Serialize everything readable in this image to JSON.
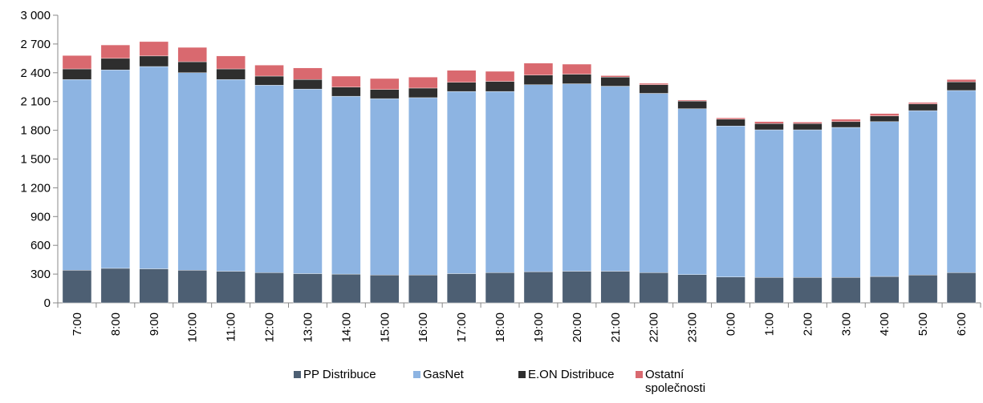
{
  "chart_data": {
    "type": "stacked_bar",
    "categories": [
      "7:00",
      "8:00",
      "9:00",
      "10:00",
      "11:00",
      "12:00",
      "13:00",
      "14:00",
      "15:00",
      "16:00",
      "17:00",
      "18:00",
      "19:00",
      "20:00",
      "21:00",
      "22:00",
      "23:00",
      "0:00",
      "1:00",
      "2:00",
      "3:00",
      "4:00",
      "5:00",
      "6:00"
    ],
    "series": [
      {
        "name": "PP Distribuce",
        "color": "#4d5f73",
        "values": [
          340,
          360,
          355,
          340,
          330,
          315,
          305,
          300,
          290,
          290,
          305,
          315,
          325,
          330,
          330,
          315,
          295,
          270,
          265,
          265,
          265,
          275,
          290,
          315
        ]
      },
      {
        "name": "GasNet",
        "color": "#8db4e2",
        "values": [
          1990,
          2070,
          2110,
          2060,
          2000,
          1955,
          1925,
          1855,
          1840,
          1850,
          1900,
          1890,
          1950,
          1955,
          1930,
          1870,
          1730,
          1575,
          1540,
          1540,
          1565,
          1615,
          1715,
          1900
        ]
      },
      {
        "name": "E.ON Distribuce",
        "color": "#2e2e2e",
        "values": [
          110,
          120,
          110,
          115,
          110,
          95,
          100,
          95,
          95,
          100,
          95,
          105,
          100,
          100,
          95,
          90,
          80,
          70,
          65,
          65,
          60,
          60,
          70,
          90
        ]
      },
      {
        "name": "Ostatní společnosti",
        "color": "#d9696f",
        "values": [
          140,
          140,
          150,
          150,
          135,
          115,
          120,
          115,
          115,
          115,
          125,
          105,
          125,
          105,
          15,
          15,
          10,
          15,
          20,
          15,
          25,
          25,
          15,
          25
        ]
      }
    ],
    "ylim": [
      0,
      3000
    ],
    "yticks": [
      0,
      300,
      600,
      900,
      {
        "value": 1200,
        "label": "1 200"
      },
      {
        "value": 1500,
        "label": "1 500"
      },
      {
        "value": 1800,
        "label": "1 800"
      },
      {
        "value": 2100,
        "label": "2 100"
      },
      {
        "value": 2400,
        "label": "2 400"
      },
      {
        "value": 2700,
        "label": "2 700"
      },
      {
        "value": 3000,
        "label": "3 000"
      }
    ],
    "grid": false,
    "legend": "bottom"
  }
}
